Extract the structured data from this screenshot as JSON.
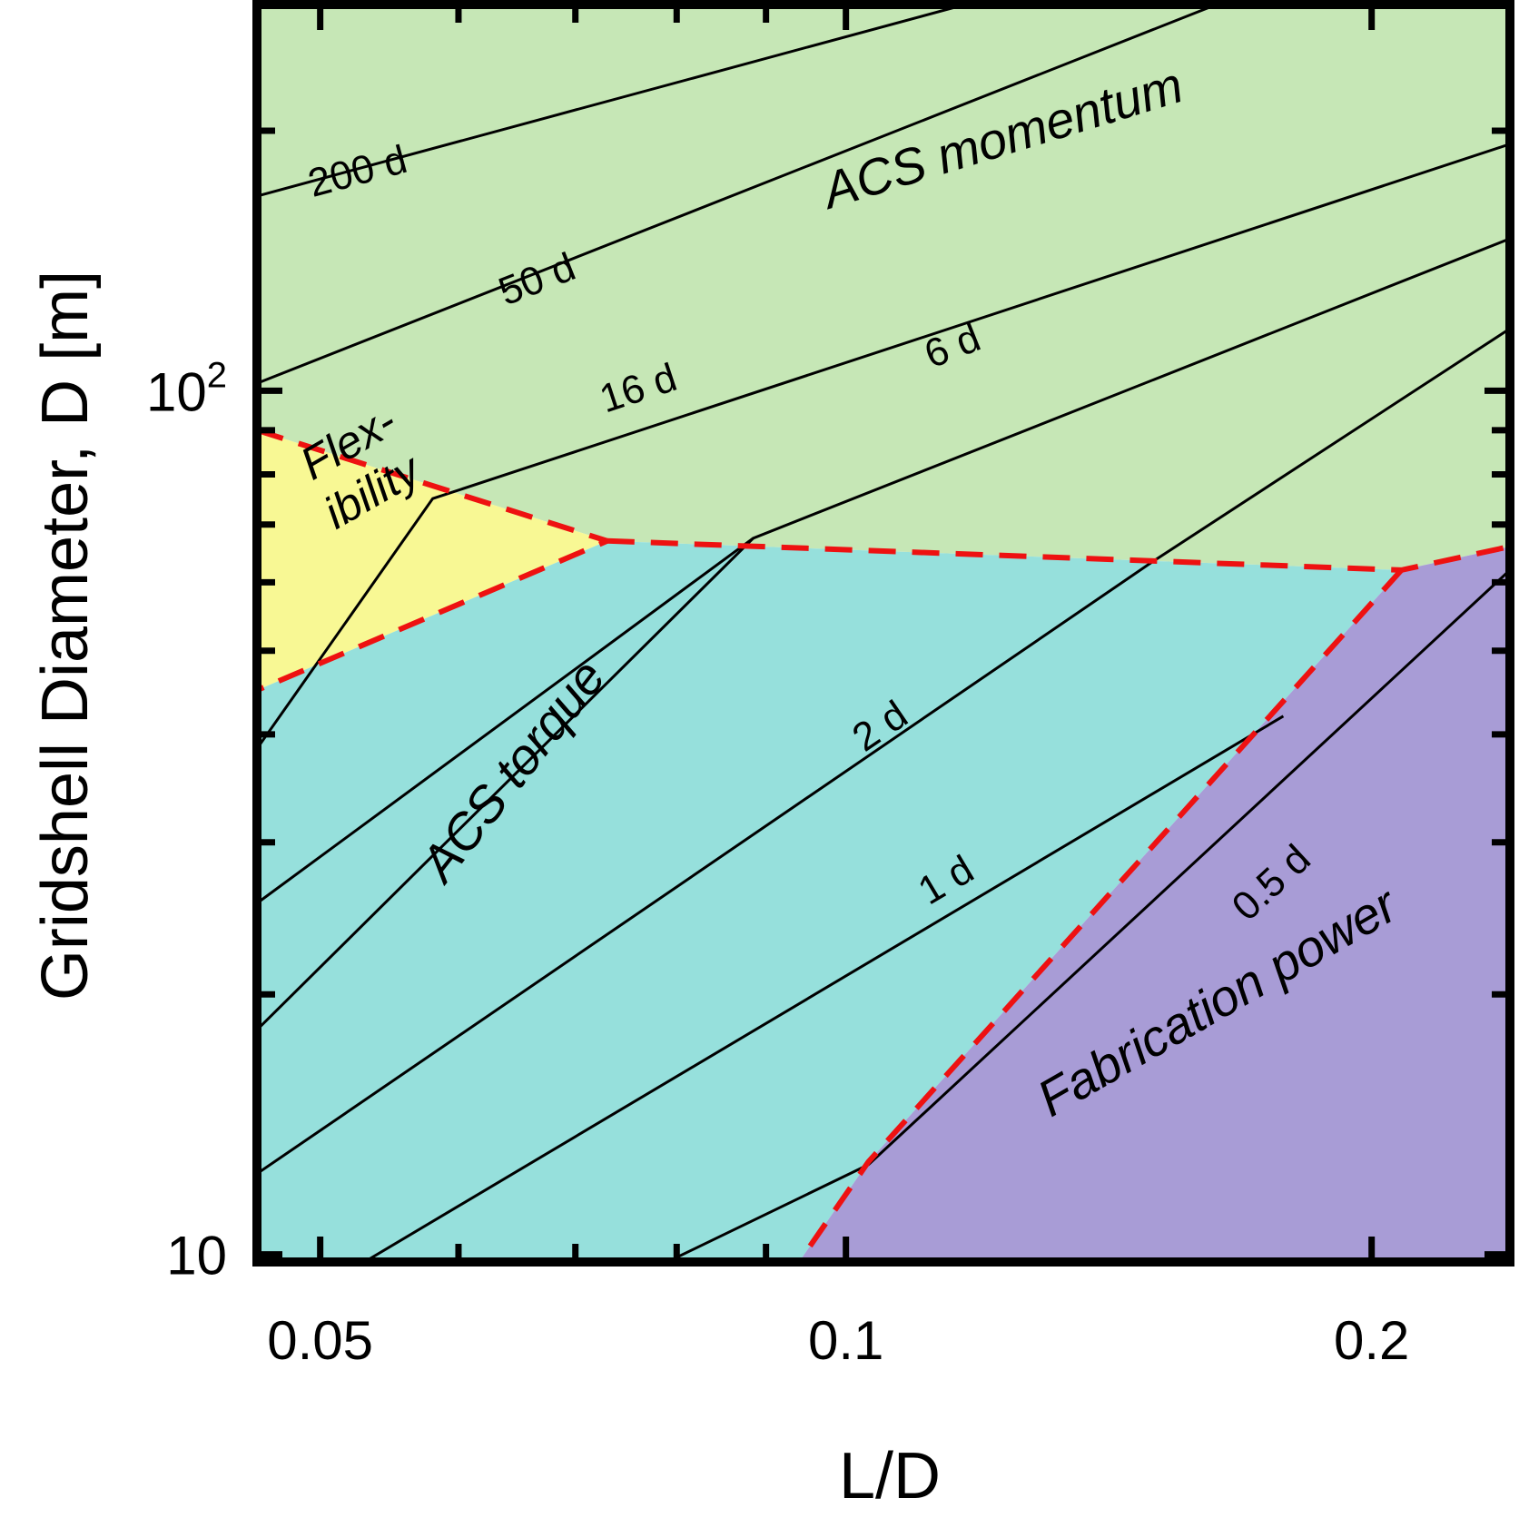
{
  "chart_data": {
    "type": "contour",
    "title": "",
    "xlabel": "L/D",
    "ylabel": "Gridshell Diameter, D [m]",
    "xscale": "log",
    "yscale": "log",
    "xlim": [
      0.046,
      0.24
    ],
    "ylim": [
      9.8,
      280
    ],
    "x_tick_labels": [
      {
        "value": 0.05,
        "label": "0.05"
      },
      {
        "value": 0.1,
        "label": "0.1"
      },
      {
        "value": 0.2,
        "label": "0.2"
      }
    ],
    "x_minor_ticks": [
      0.06,
      0.07,
      0.08,
      0.09,
      0.3
    ],
    "y_tick_labels": [
      {
        "value": 10,
        "label": "10",
        "exp": ""
      },
      {
        "value": 100,
        "label": "10",
        "exp": "2"
      }
    ],
    "y_minor_ticks": [
      20,
      30,
      40,
      50,
      60,
      70,
      80,
      90,
      200
    ],
    "regions": [
      {
        "name": "ACS momentum",
        "label": "ACS momentum",
        "color": "#c6e7b6",
        "boundary": [
          [
            0.046,
            280
          ],
          [
            0.24,
            280
          ],
          [
            0.24,
            66
          ],
          [
            0.208,
            62
          ],
          [
            0.073,
            67
          ],
          [
            0.046,
            90
          ]
        ]
      },
      {
        "name": "Flexibility",
        "label_line1": "Flex-",
        "label_line2": "ibility",
        "color": "#f8f894",
        "boundary": [
          [
            0.046,
            90
          ],
          [
            0.073,
            67
          ],
          [
            0.046,
            45
          ]
        ]
      },
      {
        "name": "ACS torque",
        "label": "ACS torque",
        "color": "#96e0dc",
        "boundary": [
          [
            0.046,
            45
          ],
          [
            0.073,
            67
          ],
          [
            0.208,
            62
          ],
          [
            0.103,
            12.8
          ],
          [
            0.094,
            9.8
          ],
          [
            0.046,
            9.8
          ]
        ]
      },
      {
        "name": "Fabrication power",
        "label": "Fabrication power",
        "color": "#a89cd6",
        "boundary": [
          [
            0.094,
            9.8
          ],
          [
            0.103,
            12.8
          ],
          [
            0.208,
            62
          ],
          [
            0.24,
            66
          ],
          [
            0.24,
            9.8
          ]
        ]
      }
    ],
    "red_boundaries": [
      [
        [
          0.046,
          90
        ],
        [
          0.073,
          67
        ],
        [
          0.046,
          45
        ]
      ],
      [
        [
          0.073,
          67
        ],
        [
          0.208,
          62
        ],
        [
          0.24,
          66
        ]
      ],
      [
        [
          0.208,
          62
        ],
        [
          0.103,
          12.8
        ],
        [
          0.094,
          9.8
        ]
      ]
    ],
    "contours": [
      {
        "label": "200 d",
        "points": [
          [
            0.046,
            168
          ],
          [
            0.117,
            280
          ]
        ],
        "label_at": [
          0.0525,
          180
        ]
      },
      {
        "label": "50 d",
        "points": [
          [
            0.046,
            102
          ],
          [
            0.163,
            280
          ]
        ],
        "label_at": [
          0.0665,
          135
        ]
      },
      {
        "label": "16 d",
        "points": [
          [
            0.046,
            38.5
          ],
          [
            0.058,
            75
          ],
          [
            0.24,
            193
          ]
        ],
        "label_at": [
          0.076,
          101
        ]
      },
      {
        "label": "6 d",
        "points": [
          [
            0.046,
            25.5
          ],
          [
            0.0885,
            67.5
          ],
          [
            0.24,
            150
          ]
        ],
        "label_at": [
          0.115,
          113
        ]
      },
      {
        "label": "",
        "points": [
          [
            0.046,
            18.2
          ],
          [
            0.0885,
            67.5
          ]
        ],
        "label_at": null
      },
      {
        "label": "2 d",
        "points": [
          [
            0.046,
            12.4
          ],
          [
            0.15,
            63.5
          ],
          [
            0.24,
            118
          ]
        ],
        "label_at": [
          0.1045,
          41
        ]
      },
      {
        "label": "1 d",
        "points": [
          [
            0.053,
            9.8
          ],
          [
            0.178,
            42
          ]
        ],
        "label_at": [
          0.114,
          27.2
        ]
      },
      {
        "label": "0.5 d",
        "points": [
          [
            0.079,
            9.8
          ],
          [
            0.103,
            12.7
          ],
          [
            0.24,
            62
          ]
        ],
        "label_at": [
          0.175,
          27
        ]
      }
    ],
    "annotations": [
      {
        "text": "ACS momentum",
        "region": "ACS momentum"
      },
      {
        "text": "ACS torque",
        "region": "ACS torque"
      },
      {
        "text": "Fabrication power",
        "region": "Fabrication power"
      },
      {
        "text": "Flex-",
        "region": "Flexibility"
      },
      {
        "text": "ibility",
        "region": "Flexibility"
      }
    ]
  }
}
